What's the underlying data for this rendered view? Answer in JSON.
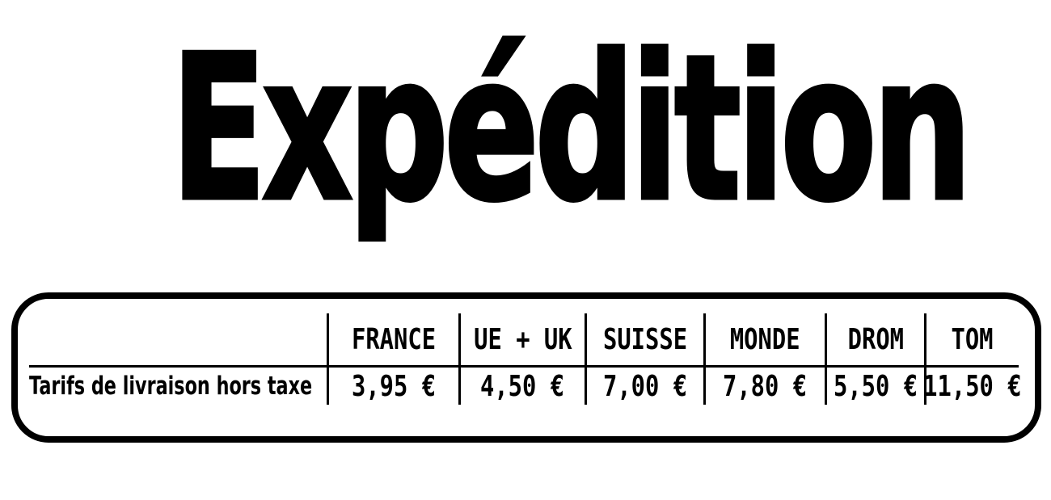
{
  "page": {
    "background_color": "#ffffff",
    "text_color": "#000000"
  },
  "title": "Expédition",
  "shipping_table": {
    "row_label": "Tarifs de livraison hors taxe",
    "columns": [
      "FRANCE",
      "UE + UK",
      "SUISSE",
      "MONDE",
      "DROM",
      "TOM"
    ],
    "rates": [
      "3,95 €",
      "4,50 €",
      "7,00 €",
      "7,80 €",
      "5,50 €",
      "11,50 €"
    ]
  },
  "chart_data": {
    "type": "table",
    "title": "Expédition",
    "row_label": "Tarifs de livraison hors taxe",
    "categories": [
      "FRANCE",
      "UE + UK",
      "SUISSE",
      "MONDE",
      "DROM",
      "TOM"
    ],
    "values_eur": [
      3.95,
      4.5,
      7.0,
      7.8,
      5.5,
      11.5
    ],
    "currency": "EUR"
  }
}
